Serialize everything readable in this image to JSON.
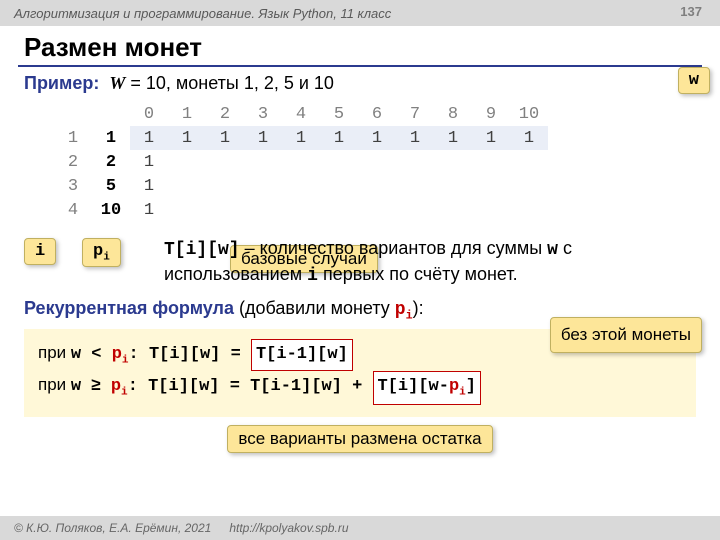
{
  "header": {
    "course": "Алгоритмизация и программирование. Язык Python, 11 класс",
    "page": "137"
  },
  "title": "Размен монет",
  "example": {
    "label": "Пример:",
    "W_name": "W",
    "W_val": "= 10, монеты 1, 2, 5 и 10"
  },
  "callouts": {
    "w": "w",
    "base": "базовые случаи",
    "i": "i",
    "pi_p": "p",
    "pi_i": "i",
    "without": "без этой монеты",
    "rest": "все варианты размена остатка"
  },
  "table": {
    "cols": [
      "0",
      "1",
      "2",
      "3",
      "4",
      "5",
      "6",
      "7",
      "8",
      "9",
      "10"
    ],
    "rows": [
      {
        "idx": "1",
        "coin": "1",
        "vals": [
          "1",
          "1",
          "1",
          "1",
          "1",
          "1",
          "1",
          "1",
          "1",
          "1",
          "1"
        ],
        "hl": true
      },
      {
        "idx": "2",
        "coin": "2",
        "vals": [
          "1",
          "",
          "",
          "",
          "",
          "",
          "",
          "",
          "",
          "",
          ""
        ]
      },
      {
        "idx": "3",
        "coin": "5",
        "vals": [
          "1",
          "",
          "",
          "",
          "",
          "",
          "",
          "",
          "",
          "",
          ""
        ]
      },
      {
        "idx": "4",
        "coin": "10",
        "vals": [
          "1",
          "",
          "",
          "",
          "",
          "",
          "",
          "",
          "",
          "",
          ""
        ]
      }
    ]
  },
  "desc": {
    "t1": "T[i][w]",
    "t2": " – количество вариантов для суммы ",
    "t3": "w",
    "t4": " с использованием ",
    "t5": "i",
    "t6": " первых по счёту монет."
  },
  "recurrent": {
    "head": "Рекуррентная формула",
    "tail1": " (добавили монету ",
    "pred_p": "p",
    "pred_i": "i",
    "tail2": "):"
  },
  "formula": {
    "l1_a": "при ",
    "l1_b": "w < ",
    "l1_c": "p",
    "l1_ci": "i",
    "l1_d": ": T[i][w] = ",
    "l1_box": "T[i-1][w]",
    "l2_a": "при ",
    "l2_b": "w ",
    "l2_ge": "≥",
    "l2_c": " p",
    "l2_ci": "i",
    "l2_d": ": T[i][w] = T[i-1][w] + ",
    "l2_box_a": "T[i][w-",
    "l2_box_p": "p",
    "l2_box_i": "i",
    "l2_box_b": "]"
  },
  "footer": {
    "copy": "© К.Ю. Поляков, Е.А. Ерёмин, 2021",
    "url": "http://kpolyakov.spb.ru"
  }
}
